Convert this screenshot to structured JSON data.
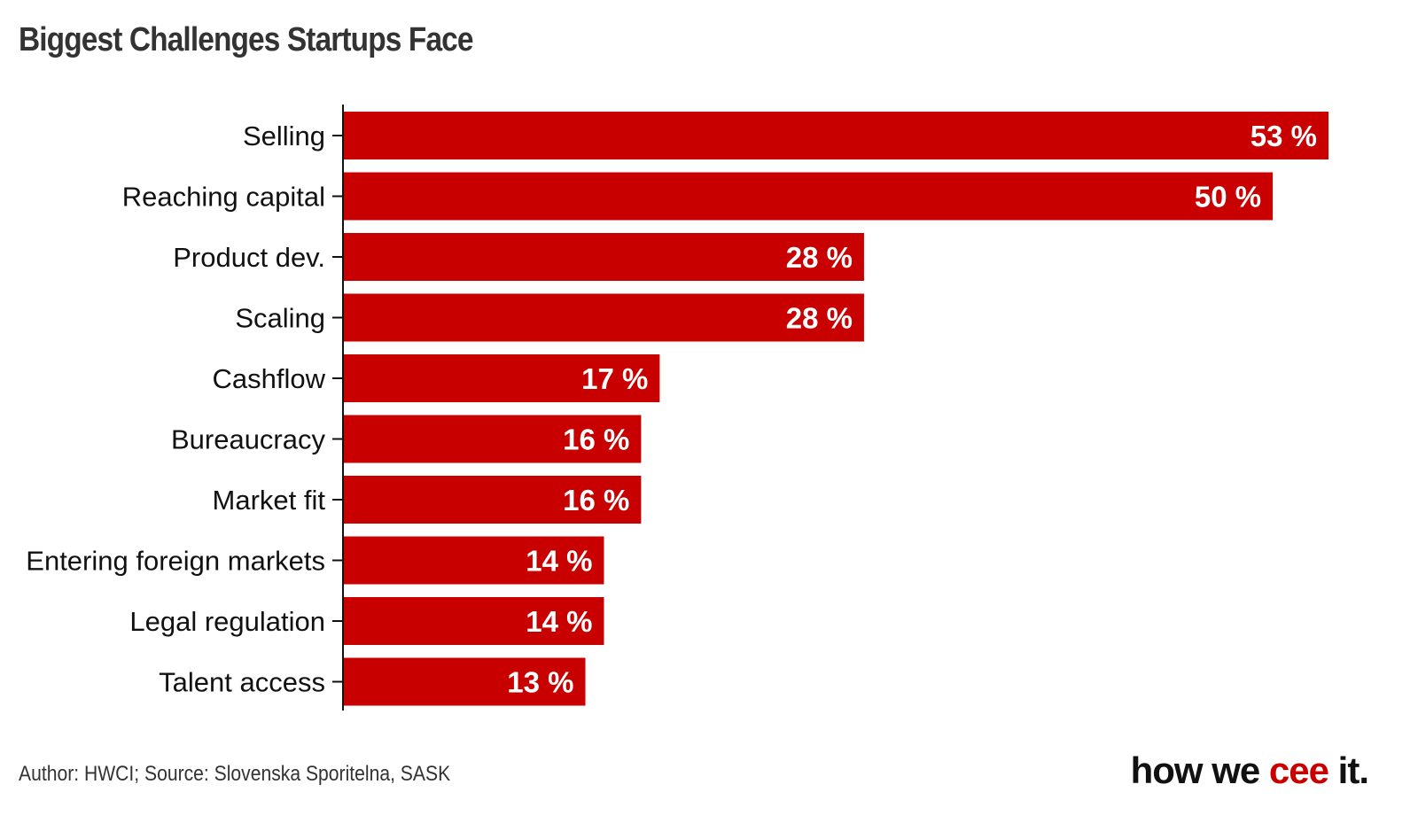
{
  "chart_data": {
    "type": "bar",
    "orientation": "horizontal",
    "title": "Biggest Challenges Startups Face",
    "categories": [
      "Selling",
      "Reaching capital",
      "Product dev.",
      "Scaling",
      "Cashflow",
      "Bureaucracy",
      "Market fit",
      "Entering foreign markets",
      "Legal regulation",
      "Talent access"
    ],
    "values": [
      53,
      50,
      28,
      28,
      17,
      16,
      16,
      14,
      14,
      13
    ],
    "value_suffix": " %",
    "xlim": [
      0,
      53
    ],
    "bar_color": "#c80000",
    "grid": false
  },
  "footer": "Author: HWCI; Source: Slovenska Sporitelna, SASK",
  "logo": {
    "part1": "how we ",
    "part2": "cee",
    "part3": " it."
  }
}
